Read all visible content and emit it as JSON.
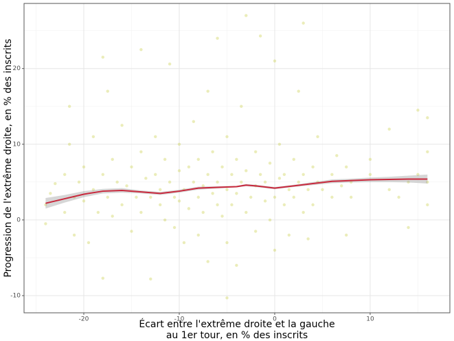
{
  "chart_data": {
    "type": "scatter",
    "x_label": [
      "Écart entre l'extrême droite et la gauche",
      "au 1er tour, en % des inscrits"
    ],
    "y_label": "Progression de l'extrême droite, en % des inscrits",
    "xlim": [
      -26.26,
      18.35
    ],
    "ylim": [
      -12.27,
      28.6
    ],
    "xticks": [
      -20,
      -10,
      0,
      10
    ],
    "yticks": [
      -10,
      0,
      10,
      20
    ],
    "minor_xticks": [
      -25,
      -15,
      -5,
      5,
      15
    ],
    "minor_yticks": [
      -5,
      5,
      15,
      25
    ],
    "grid": true,
    "points": {
      "color": "#c5cc3a",
      "x": [
        -24,
        -23.5,
        -24,
        -23,
        -22,
        -22,
        -21.5,
        -21.5,
        -21,
        -21,
        -20.5,
        -20,
        -20,
        -19.5,
        -19,
        -19,
        -18.5,
        -18,
        -18,
        -18,
        -17.5,
        -17.5,
        -17,
        -17,
        -16.5,
        -16,
        -16,
        -15.5,
        -15,
        -15,
        -14.5,
        -14,
        -14,
        -14,
        -13.5,
        -13,
        -13,
        -12.5,
        -12.5,
        -12,
        -12,
        -11.5,
        -11.5,
        -11,
        -11,
        -10.5,
        -10.5,
        -10,
        -10,
        -10,
        -9.5,
        -9.5,
        -9,
        -9,
        -8.5,
        -8.5,
        -8,
        -8,
        -8,
        -7.5,
        -7.5,
        -7,
        -7,
        -7,
        -6.5,
        -6.5,
        -6,
        -6,
        -6,
        -5.5,
        -5.5,
        -5,
        -5,
        -5,
        -4.5,
        -4.5,
        -4,
        -4,
        -4,
        -3.5,
        -3.5,
        -3,
        -3,
        -3,
        -2.5,
        -5,
        -2,
        -2,
        -2,
        -1.5,
        -1.5,
        -1,
        -1,
        -0.5,
        -0.5,
        0,
        0,
        0,
        0.5,
        0.5,
        1,
        1,
        1.5,
        1.5,
        2,
        2,
        2.5,
        2.5,
        3,
        3,
        3,
        3.5,
        3.5,
        4,
        4,
        4.5,
        4.5,
        5,
        6,
        6,
        6.5,
        7,
        7.5,
        7.5,
        8,
        8,
        10,
        10,
        12,
        12,
        13,
        14,
        14,
        15,
        15,
        16,
        16,
        16,
        16
      ],
      "y": [
        2,
        3.5,
        -0.5,
        4.8,
        6,
        1,
        10,
        15,
        3,
        -2,
        5,
        2.5,
        7,
        -3,
        4,
        11,
        1,
        6,
        -7.7,
        21.5,
        3,
        17,
        8,
        0.5,
        5,
        12.5,
        2,
        4.5,
        -1.5,
        7,
        3,
        9,
        1,
        22.5,
        5.5,
        -7.8,
        3,
        11,
        6,
        2,
        4,
        8,
        0,
        20.6,
        5,
        3,
        -1,
        6.5,
        2.5,
        10,
        4,
        -3,
        7,
        1.5,
        5,
        13,
        3,
        -2,
        8,
        4.5,
        1,
        6,
        17,
        -5.5,
        3.5,
        9,
        24,
        2,
        5,
        7,
        0.5,
        4,
        11,
        -3,
        6,
        2,
        8,
        -6,
        3.5,
        5,
        15,
        1,
        27,
        6.5,
        3,
        -10.3,
        4.5,
        9,
        -1.5,
        6,
        24.3,
        2.5,
        5,
        7.5,
        0,
        3,
        21,
        -4,
        5.5,
        10,
        2,
        6,
        4,
        -2,
        8,
        3,
        5,
        17,
        1,
        6,
        26,
        4,
        -2.5,
        7,
        2,
        5,
        11,
        4,
        6,
        3,
        8.5,
        4.5,
        -2,
        7,
        5,
        3,
        6,
        8,
        4,
        12,
        3,
        5,
        -1,
        6,
        14.5,
        2,
        9,
        13.5,
        5
      ]
    },
    "smooth": {
      "color": "#c8283c",
      "band_color": "#999999",
      "x": [
        -24,
        -22,
        -20,
        -18,
        -16,
        -14,
        -12,
        -10,
        -8,
        -6,
        -4,
        -3,
        -2,
        0,
        2,
        4,
        6,
        8,
        10,
        12,
        14,
        16
      ],
      "y": [
        2.2,
        2.8,
        3.4,
        3.8,
        3.9,
        3.7,
        3.5,
        3.8,
        4.2,
        4.3,
        4.4,
        4.6,
        4.5,
        4.2,
        4.5,
        4.8,
        5.1,
        5.2,
        5.3,
        5.35,
        5.4,
        5.4
      ],
      "lower": [
        1.5,
        2.3,
        3,
        3.5,
        3.6,
        3.5,
        3.3,
        3.6,
        4,
        4.15,
        4.3,
        4.45,
        4.35,
        4.05,
        4.35,
        4.6,
        4.85,
        4.95,
        5.0,
        5.0,
        4.95,
        4.8
      ],
      "upper": [
        2.9,
        3.3,
        3.8,
        4.1,
        4.2,
        3.9,
        3.7,
        4.0,
        4.4,
        4.45,
        4.5,
        4.75,
        4.65,
        4.35,
        4.65,
        5.0,
        5.35,
        5.45,
        5.6,
        5.7,
        5.85,
        6.0
      ]
    }
  }
}
